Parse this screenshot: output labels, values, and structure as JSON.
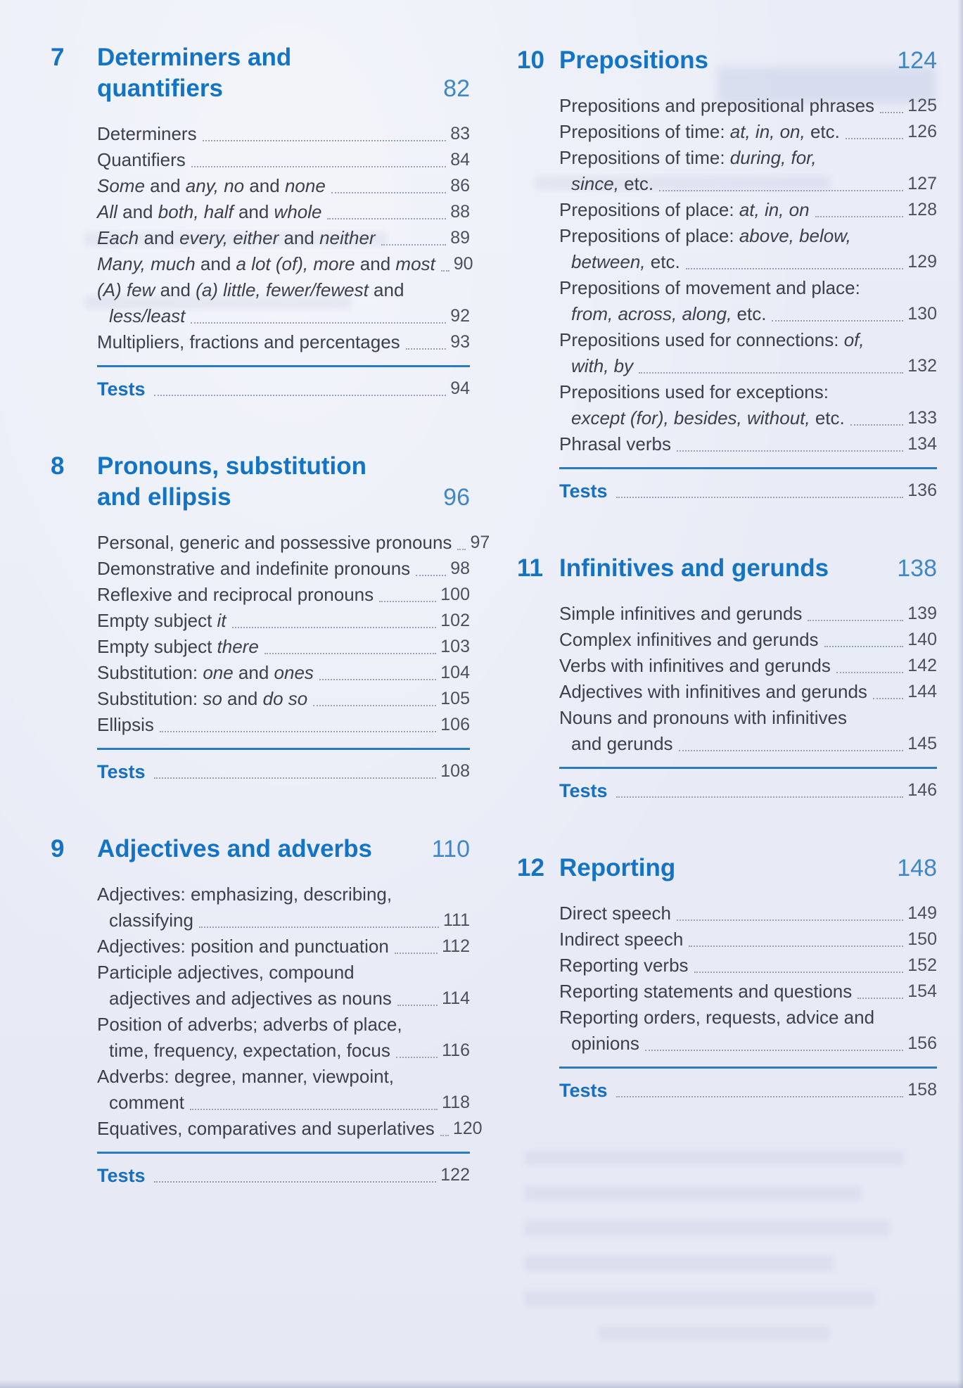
{
  "colors": {
    "background": "#e9edf7",
    "heading_blue": "#1373c5",
    "section_page_blue": "#3f87c7",
    "tests_blue": "#176fc0",
    "body_text": "#3b404b",
    "entry_page_gray": "#4b505c",
    "rule_blue": "#2a7cc0",
    "leader_dots": "#98a0ba"
  },
  "columns": [
    {
      "sections": [
        {
          "number": "7",
          "title_lines": [
            "Determiners and",
            "quantifiers"
          ],
          "page": "82",
          "entries": [
            {
              "lines": [
                [
                  {
                    "t": "Determiners"
                  }
                ]
              ],
              "page": "83"
            },
            {
              "lines": [
                [
                  {
                    "t": "Quantifiers"
                  }
                ]
              ],
              "page": "84"
            },
            {
              "lines": [
                [
                  {
                    "t": "Some",
                    "i": 1
                  },
                  {
                    "t": " and "
                  },
                  {
                    "t": "any, no",
                    "i": 1
                  },
                  {
                    "t": " and "
                  },
                  {
                    "t": "none",
                    "i": 1
                  }
                ]
              ],
              "page": "86"
            },
            {
              "lines": [
                [
                  {
                    "t": "All",
                    "i": 1
                  },
                  {
                    "t": " and "
                  },
                  {
                    "t": "both, half",
                    "i": 1
                  },
                  {
                    "t": " and "
                  },
                  {
                    "t": "whole",
                    "i": 1
                  }
                ]
              ],
              "page": "88"
            },
            {
              "lines": [
                [
                  {
                    "t": "Each",
                    "i": 1
                  },
                  {
                    "t": " and "
                  },
                  {
                    "t": "every, either",
                    "i": 1
                  },
                  {
                    "t": " and "
                  },
                  {
                    "t": "neither",
                    "i": 1
                  }
                ]
              ],
              "page": "89"
            },
            {
              "lines": [
                [
                  {
                    "t": "Many, much",
                    "i": 1
                  },
                  {
                    "t": " and "
                  },
                  {
                    "t": "a lot (of), more",
                    "i": 1
                  },
                  {
                    "t": " and "
                  },
                  {
                    "t": "most",
                    "i": 1
                  }
                ]
              ],
              "page": "90"
            },
            {
              "lines": [
                [
                  {
                    "t": "(A) few",
                    "i": 1
                  },
                  {
                    "t": " and "
                  },
                  {
                    "t": "(a) little, fewer/fewest",
                    "i": 1
                  },
                  {
                    "t": " and "
                  }
                ],
                [
                  {
                    "t": "less/least",
                    "i": 1
                  }
                ]
              ],
              "page": "92"
            },
            {
              "lines": [
                [
                  {
                    "t": "Multipliers, fractions and percentages"
                  }
                ]
              ],
              "page": "93"
            }
          ],
          "tests_label": "Tests",
          "tests_page": "94"
        },
        {
          "number": "8",
          "title_lines": [
            "Pronouns, substitution",
            "and ellipsis"
          ],
          "page": "96",
          "entries": [
            {
              "lines": [
                [
                  {
                    "t": "Personal, generic and possessive pronouns"
                  }
                ]
              ],
              "page": "97"
            },
            {
              "lines": [
                [
                  {
                    "t": "Demonstrative and indefinite pronouns"
                  }
                ]
              ],
              "page": "98"
            },
            {
              "lines": [
                [
                  {
                    "t": "Reflexive and reciprocal pronouns"
                  }
                ]
              ],
              "page": "100"
            },
            {
              "lines": [
                [
                  {
                    "t": "Empty subject "
                  },
                  {
                    "t": "it",
                    "i": 1
                  }
                ]
              ],
              "page": "102"
            },
            {
              "lines": [
                [
                  {
                    "t": "Empty subject "
                  },
                  {
                    "t": "there",
                    "i": 1
                  }
                ]
              ],
              "page": "103"
            },
            {
              "lines": [
                [
                  {
                    "t": "Substitution: "
                  },
                  {
                    "t": "one",
                    "i": 1
                  },
                  {
                    "t": " and "
                  },
                  {
                    "t": "ones",
                    "i": 1
                  }
                ]
              ],
              "page": "104"
            },
            {
              "lines": [
                [
                  {
                    "t": "Substitution: "
                  },
                  {
                    "t": "so",
                    "i": 1
                  },
                  {
                    "t": " and "
                  },
                  {
                    "t": "do so",
                    "i": 1
                  }
                ]
              ],
              "page": "105"
            },
            {
              "lines": [
                [
                  {
                    "t": "Ellipsis"
                  }
                ]
              ],
              "page": "106"
            }
          ],
          "tests_label": "Tests",
          "tests_page": "108"
        },
        {
          "number": "9",
          "title_lines": [
            "Adjectives and adverbs"
          ],
          "page": "110",
          "entries": [
            {
              "lines": [
                [
                  {
                    "t": "Adjectives: emphasizing, describing,"
                  }
                ],
                [
                  {
                    "t": "classifying"
                  }
                ]
              ],
              "page": "111"
            },
            {
              "lines": [
                [
                  {
                    "t": "Adjectives: position and punctuation"
                  }
                ]
              ],
              "page": "112"
            },
            {
              "lines": [
                [
                  {
                    "t": "Participle adjectives, compound"
                  }
                ],
                [
                  {
                    "t": "adjectives and adjectives as nouns"
                  }
                ]
              ],
              "page": "114"
            },
            {
              "lines": [
                [
                  {
                    "t": "Position of adverbs; adverbs of place,"
                  }
                ],
                [
                  {
                    "t": "time, frequency, expectation, focus"
                  }
                ]
              ],
              "page": "116"
            },
            {
              "lines": [
                [
                  {
                    "t": "Adverbs: degree, manner, viewpoint,"
                  }
                ],
                [
                  {
                    "t": "comment"
                  }
                ]
              ],
              "page": "118"
            },
            {
              "lines": [
                [
                  {
                    "t": "Equatives, comparatives and superlatives"
                  }
                ]
              ],
              "page": "120"
            }
          ],
          "tests_label": "Tests",
          "tests_page": "122"
        }
      ]
    },
    {
      "sections": [
        {
          "number": "10",
          "title_lines": [
            "Prepositions"
          ],
          "page": "124",
          "entries": [
            {
              "lines": [
                [
                  {
                    "t": "Prepositions and prepositional phrases"
                  }
                ]
              ],
              "page": "125"
            },
            {
              "lines": [
                [
                  {
                    "t": "Prepositions of time: "
                  },
                  {
                    "t": "at, in, on,",
                    "i": 1
                  },
                  {
                    "t": " etc."
                  }
                ]
              ],
              "page": "126"
            },
            {
              "lines": [
                [
                  {
                    "t": "Prepositions of time: "
                  },
                  {
                    "t": "during, for,",
                    "i": 1
                  }
                ],
                [
                  {
                    "t": "since,",
                    "i": 1
                  },
                  {
                    "t": " etc."
                  }
                ]
              ],
              "page": "127"
            },
            {
              "lines": [
                [
                  {
                    "t": "Prepositions of place: "
                  },
                  {
                    "t": "at, in, on",
                    "i": 1
                  }
                ]
              ],
              "page": "128"
            },
            {
              "lines": [
                [
                  {
                    "t": "Prepositions of place: "
                  },
                  {
                    "t": "above, below,",
                    "i": 1
                  }
                ],
                [
                  {
                    "t": "between,",
                    "i": 1
                  },
                  {
                    "t": " etc."
                  }
                ]
              ],
              "page": "129"
            },
            {
              "lines": [
                [
                  {
                    "t": "Prepositions of movement and place:"
                  }
                ],
                [
                  {
                    "t": "from, across, along,",
                    "i": 1
                  },
                  {
                    "t": " etc."
                  }
                ]
              ],
              "page": "130"
            },
            {
              "lines": [
                [
                  {
                    "t": "Prepositions used for connections: "
                  },
                  {
                    "t": "of,",
                    "i": 1
                  }
                ],
                [
                  {
                    "t": "with, by",
                    "i": 1
                  }
                ]
              ],
              "page": "132"
            },
            {
              "lines": [
                [
                  {
                    "t": "Prepositions used for exceptions:"
                  }
                ],
                [
                  {
                    "t": "except (for), besides, without,",
                    "i": 1
                  },
                  {
                    "t": " etc."
                  }
                ]
              ],
              "page": "133"
            },
            {
              "lines": [
                [
                  {
                    "t": "Phrasal verbs"
                  }
                ]
              ],
              "page": "134"
            }
          ],
          "tests_label": "Tests",
          "tests_page": "136"
        },
        {
          "number": "11",
          "title_lines": [
            "Infinitives and gerunds"
          ],
          "page": "138",
          "entries": [
            {
              "lines": [
                [
                  {
                    "t": "Simple infinitives and gerunds"
                  }
                ]
              ],
              "page": "139"
            },
            {
              "lines": [
                [
                  {
                    "t": "Complex infinitives and gerunds"
                  }
                ]
              ],
              "page": "140"
            },
            {
              "lines": [
                [
                  {
                    "t": "Verbs with infinitives and gerunds"
                  }
                ]
              ],
              "page": "142"
            },
            {
              "lines": [
                [
                  {
                    "t": "Adjectives with infinitives and gerunds"
                  }
                ]
              ],
              "page": "144"
            },
            {
              "lines": [
                [
                  {
                    "t": "Nouns and pronouns with infinitives"
                  }
                ],
                [
                  {
                    "t": "and gerunds"
                  }
                ]
              ],
              "page": "145"
            }
          ],
          "tests_label": "Tests",
          "tests_page": "146"
        },
        {
          "number": "12",
          "title_lines": [
            "Reporting"
          ],
          "page": "148",
          "entries": [
            {
              "lines": [
                [
                  {
                    "t": "Direct speech"
                  }
                ]
              ],
              "page": "149"
            },
            {
              "lines": [
                [
                  {
                    "t": "Indirect speech"
                  }
                ]
              ],
              "page": "150"
            },
            {
              "lines": [
                [
                  {
                    "t": "Reporting verbs"
                  }
                ]
              ],
              "page": "152"
            },
            {
              "lines": [
                [
                  {
                    "t": "Reporting statements and questions"
                  }
                ]
              ],
              "page": "154"
            },
            {
              "lines": [
                [
                  {
                    "t": "Reporting orders, requests, advice and"
                  }
                ],
                [
                  {
                    "t": "opinions"
                  }
                ]
              ],
              "page": "156"
            }
          ],
          "tests_label": "Tests",
          "tests_page": "158"
        }
      ]
    }
  ]
}
